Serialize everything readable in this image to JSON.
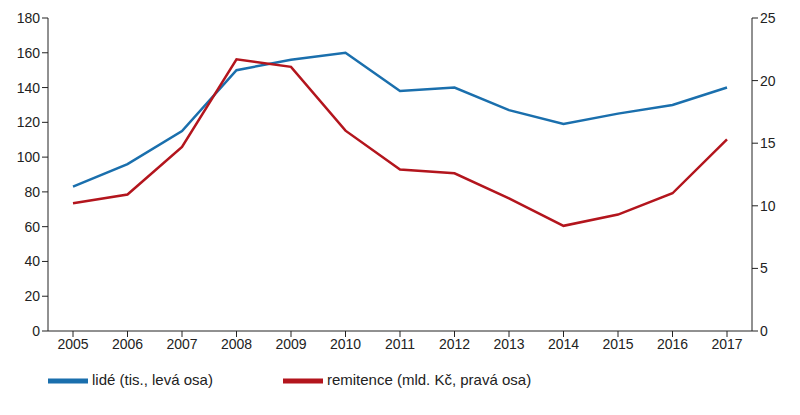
{
  "chart_data": {
    "type": "line",
    "categories": [
      "2005",
      "2006",
      "2007",
      "2008",
      "2009",
      "2010",
      "2011",
      "2012",
      "2013",
      "2014",
      "2015",
      "2016",
      "2017"
    ],
    "series": [
      {
        "name": "lidé (tis., levá osa)",
        "color": "#1a6fad",
        "values": [
          83,
          96,
          115,
          150,
          156,
          160,
          138,
          140,
          127,
          119,
          125,
          130,
          140
        ]
      },
      {
        "name": "remitence (mld. Kč, pravá osa)",
        "color": "#b3151d",
        "axis": "y2",
        "values": [
          10.2,
          10.9,
          14.7,
          21.7,
          21.1,
          16.0,
          12.9,
          12.6,
          10.6,
          8.4,
          9.3,
          11.0,
          15.3
        ]
      }
    ],
    "ylim": [
      0,
      180
    ],
    "yticks": [
      0,
      20,
      40,
      60,
      80,
      100,
      120,
      140,
      160,
      180
    ],
    "y2lim": [
      0,
      25
    ],
    "y2ticks": [
      0,
      5,
      10,
      15,
      20,
      25
    ],
    "grid": false,
    "legend": "bottom"
  }
}
